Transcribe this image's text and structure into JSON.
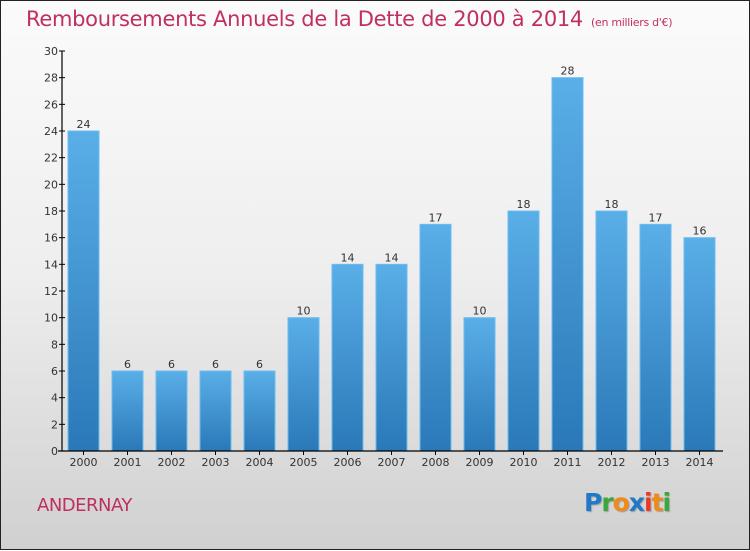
{
  "header": {
    "title": "Remboursements Annuels de la Dette de 2000 à 2014",
    "unit": "(en milliers d'€)"
  },
  "footer": {
    "town": "ANDERNAY",
    "logo": {
      "letters": [
        "P",
        "r",
        "o",
        "x",
        "i",
        "t",
        "i"
      ],
      "colors": [
        "#1f78c8",
        "#3aa83a",
        "#f08a1a",
        "#1f78c8",
        "#e83a2a",
        "#f08a1a",
        "#3aa83a"
      ]
    }
  },
  "chart_data": {
    "type": "bar",
    "title": "Remboursements Annuels de la Dette de 2000 à 2014",
    "subtitle": "(en milliers d'€)",
    "xlabel": "",
    "ylabel": "",
    "categories": [
      "2000",
      "2001",
      "2002",
      "2003",
      "2004",
      "2005",
      "2006",
      "2007",
      "2008",
      "2009",
      "2010",
      "2011",
      "2012",
      "2013",
      "2014"
    ],
    "values": [
      24,
      6,
      6,
      6,
      6,
      10,
      14,
      14,
      17,
      10,
      18,
      28,
      18,
      17,
      16
    ],
    "ylim": [
      0,
      30
    ],
    "yticks": [
      0,
      2,
      4,
      6,
      8,
      10,
      12,
      14,
      16,
      18,
      20,
      22,
      24,
      26,
      28,
      30
    ],
    "grid": false,
    "legend": "none",
    "bar_color_top": "#5aafe8",
    "bar_color_bottom": "#2a78b8"
  }
}
